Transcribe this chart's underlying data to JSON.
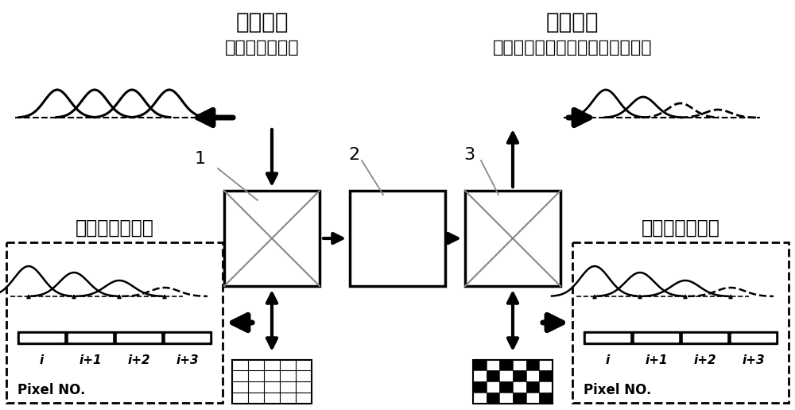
{
  "bg_color": "#ffffff",
  "text_color": "#000000",
  "top_label_input": "输入光场",
  "top_label_input_sub": "（匀化平面光）",
  "top_label_output": "输出光场",
  "top_label_output_sub": "（相位、振幅调制的图案化光场）",
  "label_amp": "像素化振幅调制",
  "label_phase": "像素化相位调制",
  "pixel_label": "Pixel NO.",
  "pixel_ticks": [
    "i",
    "i+1",
    "i+2",
    "i+3"
  ],
  "num_labels": [
    "1",
    "2",
    "3"
  ],
  "figsize": [
    10.0,
    5.16
  ],
  "dpi": 100
}
